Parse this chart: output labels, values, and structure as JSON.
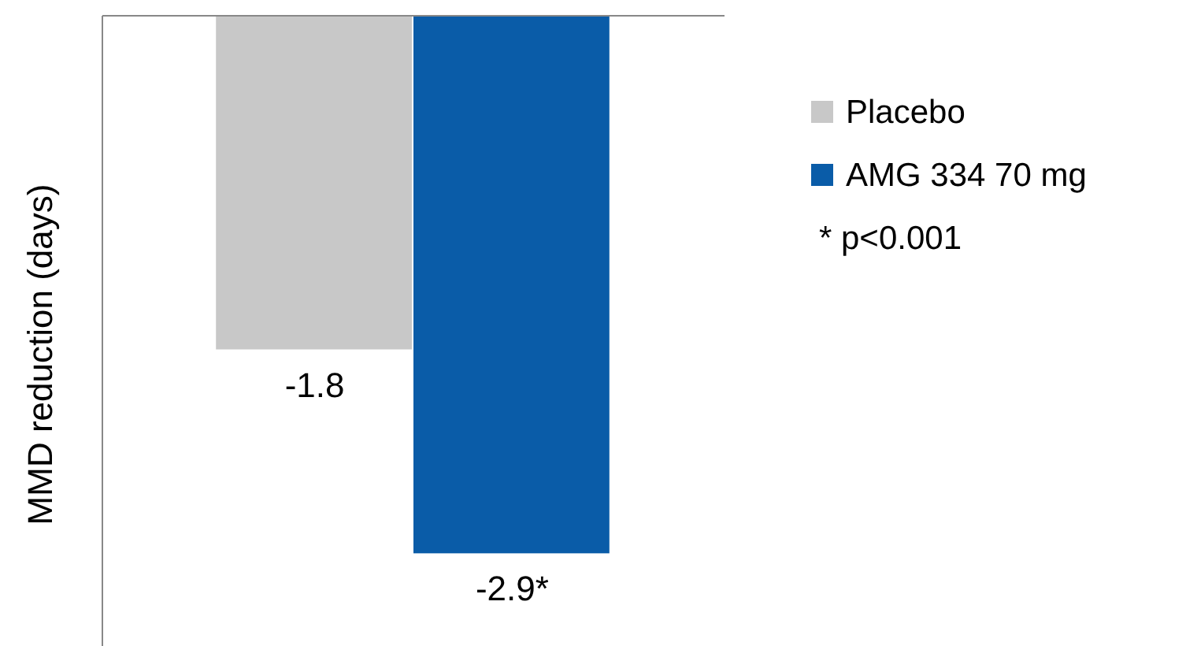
{
  "chart_data": {
    "type": "bar",
    "ylabel": "MMD reduction (days)",
    "categories": [
      null
    ],
    "series": [
      {
        "name": "Placebo",
        "color": "#c8c8c8",
        "values": [
          -1.8
        ],
        "value_labels": [
          "-1.8"
        ]
      },
      {
        "name": "AMG 334 70 mg",
        "color": "#0a5ca8",
        "values": [
          -2.9
        ],
        "value_labels": [
          "-2.9*"
        ]
      }
    ],
    "ylim": [
      -3.4,
      0
    ],
    "legend": "right",
    "annotations": [
      "* p<0.001"
    ]
  }
}
